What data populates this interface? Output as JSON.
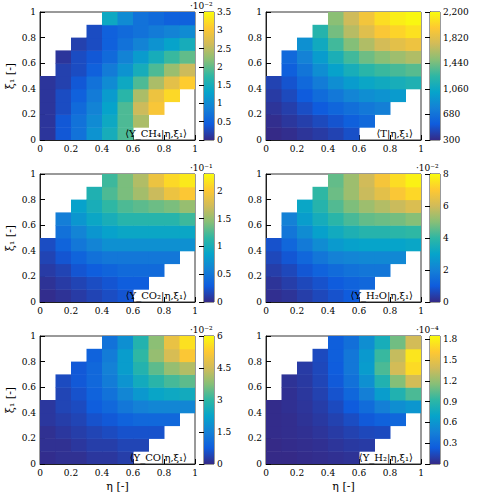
{
  "chart_data": [
    {
      "type": "heatmap",
      "title": "⟨Y_CH₄|η,ξ₁⟩",
      "y_label": "ξ₁ [-]",
      "xlim": [
        0,
        1
      ],
      "ylim": [
        0,
        1
      ],
      "xticks": [
        0,
        0.2,
        0.4,
        0.6,
        0.8,
        1
      ],
      "yticks": [
        0,
        0.2,
        0.4,
        0.6,
        0.8,
        1
      ],
      "x_edges": [
        0,
        0.1,
        0.2,
        0.3,
        0.4,
        0.5,
        0.6,
        0.7,
        0.8,
        0.9,
        1
      ],
      "y_edges": [
        0,
        0.1,
        0.2,
        0.3,
        0.4,
        0.5,
        0.6,
        0.7,
        0.8,
        0.9,
        1
      ],
      "cells": [
        [
          0.1,
          0.4,
          0.7,
          1.1,
          1.5,
          1.9,
          null,
          null,
          null,
          null
        ],
        [
          0.1,
          0.4,
          0.7,
          1.0,
          1.4,
          1.9,
          2.4,
          null,
          null,
          null
        ],
        [
          0.1,
          0.3,
          0.6,
          0.9,
          1.3,
          1.9,
          2.6,
          3.0,
          null,
          null
        ],
        [
          0.1,
          0.3,
          0.5,
          0.8,
          1.2,
          1.7,
          2.4,
          2.9,
          3.2,
          null
        ],
        [
          0.1,
          0.2,
          0.4,
          0.7,
          1.0,
          1.4,
          1.9,
          2.4,
          2.8,
          3.1
        ],
        [
          null,
          0.2,
          0.3,
          0.5,
          0.8,
          1.1,
          1.5,
          1.9,
          2.3,
          2.6
        ],
        [
          null,
          0.1,
          0.3,
          0.4,
          0.6,
          0.9,
          1.2,
          1.5,
          1.8,
          2.0
        ],
        [
          null,
          null,
          0.2,
          0.3,
          0.5,
          0.7,
          0.9,
          1.1,
          1.3,
          1.5
        ],
        [
          null,
          null,
          null,
          0.3,
          0.5,
          0.6,
          0.7,
          0.8,
          0.9,
          1.0
        ],
        [
          null,
          null,
          null,
          null,
          1.4,
          1.0,
          0.7,
          0.6,
          0.5,
          0.5
        ]
      ],
      "colorbar": {
        "range": [
          0,
          3.5
        ],
        "ticks": [
          0,
          0.5,
          1,
          1.5,
          2,
          2.5,
          3,
          3.5
        ],
        "label": "·10⁻²"
      }
    },
    {
      "type": "heatmap",
      "title": "⟨T|η,ξ₁⟩",
      "xlim": [
        0,
        1
      ],
      "ylim": [
        0,
        1
      ],
      "xticks": [
        0,
        0.2,
        0.4,
        0.6,
        0.8,
        1
      ],
      "yticks": [
        0,
        0.2,
        0.4,
        0.6,
        0.8,
        1
      ],
      "x_edges": [
        0,
        0.1,
        0.2,
        0.3,
        0.4,
        0.5,
        0.6,
        0.7,
        0.8,
        0.9,
        1
      ],
      "y_edges": [
        0,
        0.1,
        0.2,
        0.3,
        0.4,
        0.5,
        0.6,
        0.7,
        0.8,
        0.9,
        1
      ],
      "cells": [
        [
          300,
          320,
          350,
          380,
          420,
          480,
          null,
          null,
          null,
          null
        ],
        [
          320,
          360,
          400,
          450,
          500,
          560,
          620,
          null,
          null,
          null
        ],
        [
          350,
          400,
          470,
          540,
          600,
          660,
          720,
          760,
          null,
          null
        ],
        [
          380,
          450,
          540,
          640,
          720,
          800,
          860,
          900,
          950,
          null
        ],
        [
          420,
          500,
          620,
          740,
          860,
          960,
          1040,
          1080,
          1120,
          1160
        ],
        [
          null,
          560,
          700,
          860,
          1000,
          1120,
          1220,
          1280,
          1320,
          1360
        ],
        [
          null,
          620,
          780,
          960,
          1140,
          1300,
          1420,
          1500,
          1560,
          1620
        ],
        [
          null,
          null,
          880,
          1080,
          1300,
          1480,
          1620,
          1740,
          1820,
          1880
        ],
        [
          null,
          null,
          null,
          1200,
          1440,
          1640,
          1800,
          1940,
          2020,
          2080
        ],
        [
          null,
          null,
          null,
          null,
          1500,
          1720,
          1900,
          2060,
          2140,
          2180
        ]
      ],
      "colorbar": {
        "range": [
          300,
          2200
        ],
        "ticks": [
          300,
          680,
          {
            "value": 1060,
            "label": "1,060"
          },
          {
            "value": 1440,
            "label": "1,440"
          },
          {
            "value": 1820,
            "label": "1,820"
          },
          {
            "value": 2200,
            "label": "2,200"
          }
        ]
      }
    },
    {
      "type": "heatmap",
      "title": "⟨Y_CO₂|η,ξ₁⟩",
      "y_label": "ξ₁ [-]",
      "xlim": [
        0,
        1
      ],
      "ylim": [
        0,
        1
      ],
      "xticks": [
        0,
        0.2,
        0.4,
        0.6,
        0.8,
        1
      ],
      "yticks": [
        0,
        0.2,
        0.4,
        0.6,
        0.8,
        1
      ],
      "x_edges": [
        0,
        0.1,
        0.2,
        0.3,
        0.4,
        0.5,
        0.6,
        0.7,
        0.8,
        0.9,
        1
      ],
      "y_edges": [
        0,
        0.1,
        0.2,
        0.3,
        0.4,
        0.5,
        0.6,
        0.7,
        0.8,
        0.9,
        1
      ],
      "cells": [
        [
          0.02,
          0.05,
          0.1,
          0.15,
          0.2,
          0.25,
          null,
          null,
          null,
          null
        ],
        [
          0.05,
          0.1,
          0.15,
          0.2,
          0.25,
          0.3,
          0.3,
          null,
          null,
          null
        ],
        [
          0.1,
          0.15,
          0.25,
          0.3,
          0.35,
          0.4,
          0.4,
          0.4,
          null,
          null
        ],
        [
          0.15,
          0.25,
          0.35,
          0.45,
          0.5,
          0.5,
          0.5,
          0.5,
          0.5,
          null
        ],
        [
          0.2,
          0.35,
          0.5,
          0.6,
          0.7,
          0.7,
          0.7,
          0.7,
          0.7,
          0.7
        ],
        [
          null,
          0.45,
          0.6,
          0.75,
          0.85,
          0.9,
          0.9,
          0.9,
          0.9,
          0.9
        ],
        [
          null,
          0.55,
          0.75,
          0.9,
          1.0,
          1.1,
          1.1,
          1.1,
          1.1,
          1.2
        ],
        [
          null,
          null,
          0.85,
          1.0,
          1.15,
          1.25,
          1.3,
          1.35,
          1.4,
          1.5
        ],
        [
          null,
          null,
          null,
          1.05,
          1.25,
          1.4,
          1.55,
          1.7,
          1.9,
          2.0
        ],
        [
          null,
          null,
          null,
          null,
          1.2,
          1.4,
          1.6,
          1.9,
          2.1,
          2.2
        ]
      ],
      "colorbar": {
        "range": [
          0,
          2.3
        ],
        "ticks": [
          0,
          0.5,
          1,
          1.5,
          2
        ],
        "label": "·10⁻¹"
      }
    },
    {
      "type": "heatmap",
      "title": "⟨Y_H₂O|η,ξ₁⟩",
      "xlim": [
        0,
        1
      ],
      "ylim": [
        0,
        1
      ],
      "xticks": [
        0,
        0.2,
        0.4,
        0.6,
        0.8,
        1
      ],
      "yticks": [
        0,
        0.2,
        0.4,
        0.6,
        0.8,
        1
      ],
      "x_edges": [
        0,
        0.1,
        0.2,
        0.3,
        0.4,
        0.5,
        0.6,
        0.7,
        0.8,
        0.9,
        1
      ],
      "y_edges": [
        0,
        0.1,
        0.2,
        0.3,
        0.4,
        0.5,
        0.6,
        0.7,
        0.8,
        0.9,
        1
      ],
      "cells": [
        [
          0.1,
          0.2,
          0.4,
          0.6,
          0.8,
          1.0,
          null,
          null,
          null,
          null
        ],
        [
          0.2,
          0.4,
          0.6,
          0.8,
          1.0,
          1.2,
          1.3,
          null,
          null,
          null
        ],
        [
          0.4,
          0.6,
          0.9,
          1.2,
          1.4,
          1.6,
          1.7,
          1.7,
          null,
          null
        ],
        [
          0.6,
          0.9,
          1.3,
          1.7,
          2.0,
          2.1,
          2.2,
          2.2,
          2.2,
          null
        ],
        [
          0.8,
          1.3,
          1.8,
          2.3,
          2.7,
          2.9,
          3.0,
          3.0,
          3.0,
          3.1
        ],
        [
          null,
          1.7,
          2.3,
          2.9,
          3.3,
          3.6,
          3.8,
          3.8,
          3.9,
          4.0
        ],
        [
          null,
          2.0,
          2.8,
          3.4,
          3.9,
          4.3,
          4.6,
          4.7,
          4.8,
          5.0
        ],
        [
          null,
          null,
          3.1,
          3.8,
          4.4,
          4.9,
          5.3,
          5.6,
          5.9,
          6.2
        ],
        [
          null,
          null,
          null,
          4.0,
          4.7,
          5.3,
          5.9,
          6.4,
          6.9,
          7.3
        ],
        [
          null,
          null,
          null,
          null,
          4.6,
          5.3,
          6.0,
          6.8,
          7.4,
          7.8
        ]
      ],
      "colorbar": {
        "range": [
          0,
          8
        ],
        "ticks": [
          0,
          2,
          4,
          6,
          8
        ],
        "label": "·10⁻²"
      }
    },
    {
      "type": "heatmap",
      "title": "⟨Y_CO|η,ξ₁⟩",
      "x_label": "η [-]",
      "y_label": "ξ₁ [-]",
      "xlim": [
        0,
        1
      ],
      "ylim": [
        0,
        1
      ],
      "xticks": [
        0,
        0.2,
        0.4,
        0.6,
        0.8,
        1
      ],
      "yticks": [
        0,
        0.2,
        0.4,
        0.6,
        0.8,
        1
      ],
      "x_edges": [
        0,
        0.1,
        0.2,
        0.3,
        0.4,
        0.5,
        0.6,
        0.7,
        0.8,
        0.9,
        1
      ],
      "y_edges": [
        0,
        0.1,
        0.2,
        0.3,
        0.4,
        0.5,
        0.6,
        0.7,
        0.8,
        0.9,
        1
      ],
      "cells": [
        [
          0.05,
          0.1,
          0.1,
          0.2,
          0.2,
          0.3,
          null,
          null,
          null,
          null
        ],
        [
          0.1,
          0.1,
          0.2,
          0.3,
          0.3,
          0.4,
          0.4,
          null,
          null,
          null
        ],
        [
          0.1,
          0.2,
          0.3,
          0.4,
          0.5,
          0.6,
          0.6,
          0.6,
          null,
          null
        ],
        [
          0.2,
          0.3,
          0.4,
          0.6,
          0.7,
          0.9,
          1.0,
          1.0,
          1.0,
          null
        ],
        [
          0.2,
          0.4,
          0.5,
          0.8,
          1.0,
          1.3,
          1.5,
          1.6,
          1.6,
          1.6
        ],
        [
          null,
          0.4,
          0.6,
          0.9,
          1.2,
          1.6,
          2.0,
          2.3,
          2.4,
          2.5
        ],
        [
          null,
          0.5,
          0.7,
          1.0,
          1.4,
          1.9,
          2.5,
          2.9,
          3.2,
          3.4
        ],
        [
          null,
          null,
          0.7,
          1.0,
          1.5,
          2.1,
          2.8,
          3.4,
          3.9,
          4.2
        ],
        [
          null,
          null,
          null,
          0.9,
          1.4,
          2.1,
          3.0,
          3.9,
          4.6,
          5.2
        ],
        [
          null,
          null,
          null,
          null,
          1.2,
          1.8,
          2.8,
          3.8,
          4.9,
          5.6
        ]
      ],
      "colorbar": {
        "range": [
          0,
          6
        ],
        "ticks": [
          0,
          1.5,
          3,
          4.5,
          6
        ],
        "label": "·10⁻²"
      }
    },
    {
      "type": "heatmap",
      "title": "⟨Y_H₂|η,ξ₁⟩",
      "x_label": "η [-]",
      "xlim": [
        0,
        1
      ],
      "ylim": [
        0,
        1
      ],
      "xticks": [
        0,
        0.2,
        0.4,
        0.6,
        0.8,
        1
      ],
      "yticks": [
        0,
        0.2,
        0.4,
        0.6,
        0.8,
        1
      ],
      "x_edges": [
        0,
        0.1,
        0.2,
        0.3,
        0.4,
        0.5,
        0.6,
        0.7,
        0.8,
        0.9,
        1
      ],
      "y_edges": [
        0,
        0.1,
        0.2,
        0.3,
        0.4,
        0.5,
        0.6,
        0.7,
        0.8,
        0.9,
        1
      ],
      "cells": [
        [
          0.0,
          0.0,
          0.01,
          0.02,
          0.03,
          0.04,
          null,
          null,
          null,
          null
        ],
        [
          0.0,
          0.01,
          0.02,
          0.03,
          0.05,
          0.07,
          0.08,
          null,
          null,
          null
        ],
        [
          0.01,
          0.02,
          0.03,
          0.05,
          0.08,
          0.11,
          0.14,
          0.15,
          null,
          null
        ],
        [
          0.01,
          0.02,
          0.04,
          0.07,
          0.11,
          0.16,
          0.22,
          0.27,
          0.3,
          null
        ],
        [
          0.01,
          0.03,
          0.05,
          0.09,
          0.15,
          0.23,
          0.33,
          0.45,
          0.55,
          0.6
        ],
        [
          null,
          0.03,
          0.06,
          0.11,
          0.19,
          0.3,
          0.45,
          0.65,
          0.85,
          1.0
        ],
        [
          null,
          0.04,
          0.07,
          0.13,
          0.22,
          0.36,
          0.56,
          0.85,
          1.15,
          1.4
        ],
        [
          null,
          null,
          0.08,
          0.14,
          0.24,
          0.4,
          0.64,
          1.0,
          1.4,
          1.7
        ],
        [
          null,
          null,
          null,
          0.15,
          0.25,
          0.4,
          0.62,
          0.95,
          1.35,
          1.75
        ],
        [
          null,
          null,
          null,
          null,
          0.25,
          0.35,
          0.55,
          0.8,
          1.1,
          1.4
        ]
      ],
      "colorbar": {
        "range": [
          0,
          1.85
        ],
        "ticks": [
          0,
          0.3,
          0.6,
          0.9,
          1.2,
          1.5,
          1.8
        ],
        "label": "·10⁻⁴"
      }
    }
  ]
}
